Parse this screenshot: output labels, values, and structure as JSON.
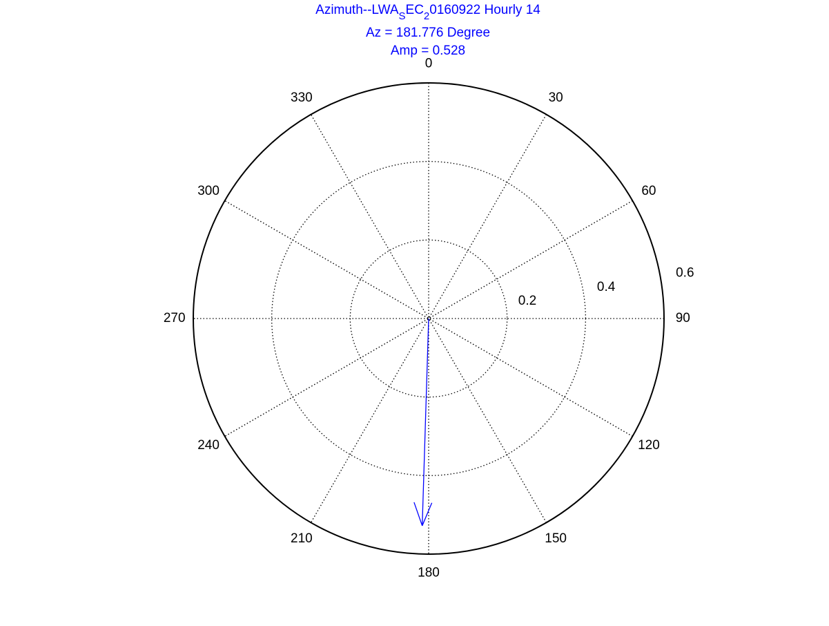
{
  "chart_data": {
    "type": "polar-compass",
    "title": {
      "line1_main": "Azimuth--LWA",
      "line1_sub1": "S",
      "line1_mid": "EC",
      "line1_sub2": "2",
      "line1_tail": "0160922 Hourly 14",
      "line2": "Az = 181.776 Degree",
      "line3": "Amp = 0.528"
    },
    "angle_ticks": [
      0,
      30,
      60,
      90,
      120,
      150,
      180,
      210,
      240,
      270,
      300,
      330
    ],
    "angle_tick_labels": [
      "0",
      "30",
      "60",
      "90",
      "120",
      "150",
      "180",
      "210",
      "240",
      "270",
      "300",
      "330"
    ],
    "radial_ticks": [
      0.2,
      0.4,
      0.6
    ],
    "radial_tick_labels": [
      "0.2",
      "0.4",
      "0.6"
    ],
    "rlim": [
      0,
      0.6
    ],
    "angle_convention": "clockwise from top (north = 0)",
    "grid": true,
    "series": [
      {
        "type": "arrow",
        "azimuth_deg": 181.776,
        "amplitude": 0.528
      }
    ],
    "colors": {
      "arrow": "#0000ff",
      "title": "#0000ff",
      "axes": "#000000",
      "grid": "#000000"
    }
  }
}
